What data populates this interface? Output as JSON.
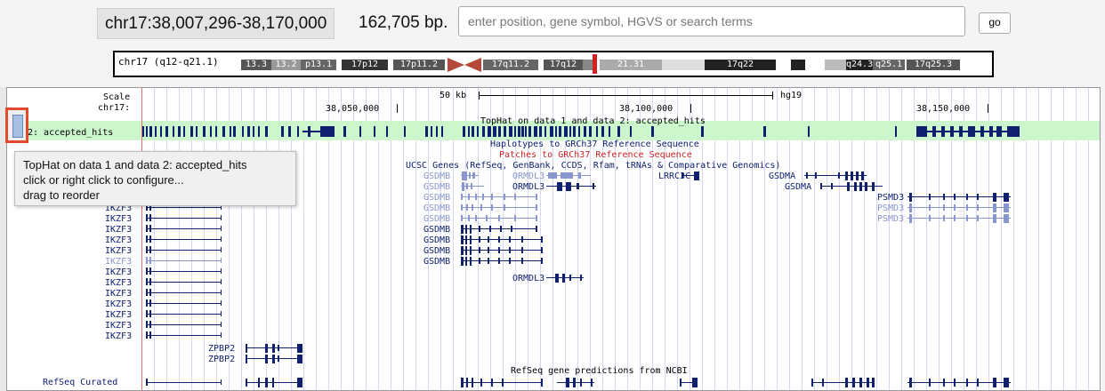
{
  "position": "chr17:38,007,296-38,170,000",
  "bp_size": "162,705 bp.",
  "search": {
    "placeholder": "enter position, gene symbol, HGVS or search terms"
  },
  "go_label": "go",
  "ideogram": {
    "label": "chr17 (q12-q21.1)",
    "bands": [
      "13.3",
      "13.2",
      "p13.1",
      "17p12",
      "17p11.2",
      "17q11.2",
      "17q12",
      "21.31",
      "17q22",
      "q24.3",
      "q25.1",
      "17q25.3"
    ]
  },
  "scale": {
    "scale_label": "Scale",
    "chrom_label": "chr17:",
    "scale_bar": "50 kb",
    "assembly": "hg19",
    "ticks": [
      "38,050,000",
      "38,100,000",
      "38,150,000"
    ]
  },
  "tracks": {
    "tophat_title": "TopHat on data 1 and data 2: accepted_hits",
    "tophat_label": "2: accepted_hits",
    "haplotypes": "Haplotypes to GRCh37 Reference Sequence",
    "patches": "Patches to GRCh37 Reference Sequence",
    "ucsc_genes": "UCSC Genes (RefSeq, GenBank, CCDS, Rfam, tRNAs & Comparative Genomics)",
    "refseq_title": "RefSeq gene predictions from NCBI",
    "refseq_label": "RefSeq Curated"
  },
  "genes": {
    "gsdmb": "GSDMB",
    "ormdl3": "ORMDL3",
    "lrrc3c": "LRRC3C",
    "gsdma": "GSDMA",
    "psmd3": "PSMD3",
    "ikzf3": "IKZF3",
    "zpbp2": "ZPBP2"
  },
  "tooltip": {
    "line1": "TopHat on data 1 and data 2: accepted_hits",
    "line2": "click or right click to configure...",
    "line3": "drag to reorder"
  },
  "colors": {
    "gene_dark": "#10206e",
    "gene_light": "#8a96cf",
    "patch_red": "#cc2222",
    "highlight_green": "#ccf7cc",
    "handle_red": "#e34a2d"
  }
}
